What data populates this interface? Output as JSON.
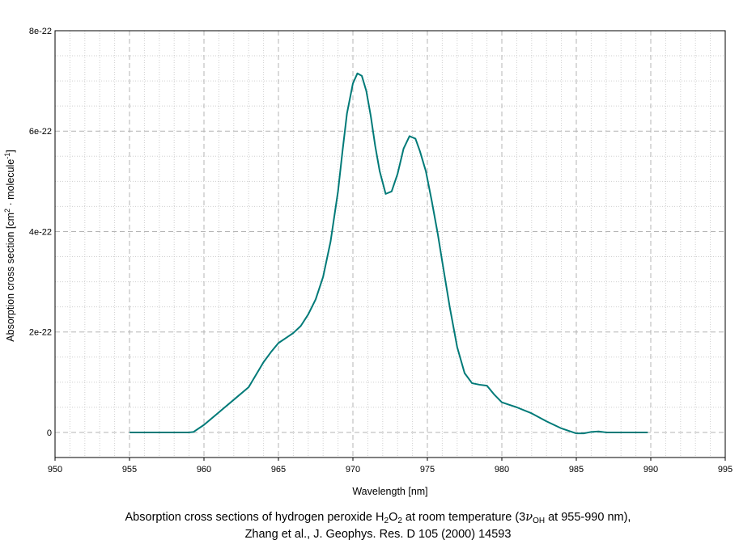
{
  "chart_data": {
    "type": "line",
    "title": "",
    "xlabel": "Wavelength [nm]",
    "ylabel": {
      "prefix": "Absorption cross section [cm",
      "sup1": "2",
      "middle": " · molecule",
      "sup2": "-1",
      "suffix": "]"
    },
    "xlim": [
      950,
      995
    ],
    "ylim": [
      -5e-23,
      8e-22
    ],
    "x_ticks": [
      950,
      955,
      960,
      965,
      970,
      975,
      980,
      985,
      990,
      995
    ],
    "x_tick_labels": [
      "950",
      "955",
      "960",
      "965",
      "970",
      "975",
      "980",
      "985",
      "990",
      "995"
    ],
    "y_ticks": [
      0,
      2e-22,
      4e-22,
      6e-22,
      8e-22
    ],
    "y_tick_labels": [
      "0",
      "2e-22",
      "4e-22",
      "6e-22",
      "8e-22"
    ],
    "grid": true,
    "line_color": "#007a78",
    "series": [
      {
        "x": [
          955,
          957,
          959,
          959.3,
          960,
          961,
          962,
          963,
          963.5,
          964,
          964.5,
          965,
          965.5,
          966,
          966.5,
          967,
          967.5,
          968,
          968.5,
          969,
          969.3,
          969.6,
          970,
          970.3,
          970.6,
          970.9,
          971.2,
          971.5,
          971.8,
          972.2,
          972.6,
          973,
          973.4,
          973.8,
          974.2,
          974.5,
          974.9,
          975.3,
          975.7,
          976,
          976.5,
          977,
          977.5,
          978,
          978.5,
          979,
          979.5,
          980,
          980.5,
          981,
          982,
          983,
          984,
          985,
          985.5,
          986,
          986.5,
          987,
          988,
          989,
          989.8
        ],
        "y": [
          0,
          0,
          0,
          1e-24,
          1.5e-23,
          4e-23,
          6.5e-23,
          9e-23,
          1.15e-22,
          1.4e-22,
          1.6e-22,
          1.78e-22,
          1.88e-22,
          1.98e-22,
          2.12e-22,
          2.35e-22,
          2.65e-22,
          3.1e-22,
          3.8e-22,
          4.8e-22,
          5.6e-22,
          6.35e-22,
          6.95e-22,
          7.15e-22,
          7.1e-22,
          6.8e-22,
          6.3e-22,
          5.7e-22,
          5.2e-22,
          4.75e-22,
          4.8e-22,
          5.15e-22,
          5.65e-22,
          5.9e-22,
          5.85e-22,
          5.6e-22,
          5.2e-22,
          4.6e-22,
          3.95e-22,
          3.4e-22,
          2.5e-22,
          1.7e-22,
          1.18e-22,
          9.8e-23,
          9.5e-23,
          9.3e-23,
          7.5e-23,
          6e-23,
          5.5e-23,
          5e-23,
          3.8e-23,
          2.2e-23,
          8e-24,
          -2e-24,
          -2e-24,
          1e-24,
          2e-24,
          0,
          0,
          0,
          0
        ]
      }
    ]
  },
  "caption": {
    "line1_a": "Absorption cross sections of hydrogen peroxide H",
    "line1_sub1": "2",
    "line1_b": "O",
    "line1_sub2": "2",
    "line1_c": " at room temperature (3",
    "line1_nu": "ν",
    "line1_sub3": "OH",
    "line1_d": " at 955-990 nm),",
    "line2": "Zhang et al., J. Geophys. Res. D 105 (2000) 14593"
  }
}
